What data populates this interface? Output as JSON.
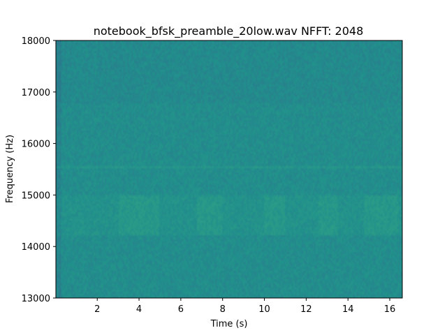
{
  "chart_data": {
    "type": "heatmap",
    "title": "notebook_bfsk_preamble_20low.wav  NFFT: 2048",
    "xlabel": "Time (s)",
    "ylabel": "Frequency (Hz)",
    "xlim": [
      0.02,
      16.6
    ],
    "ylim": [
      13000,
      18000
    ],
    "xticks": [
      2,
      4,
      6,
      8,
      10,
      12,
      14,
      16
    ],
    "xtick_labels": [
      "2",
      "4",
      "6",
      "8",
      "10",
      "12",
      "14",
      "16"
    ],
    "yticks": [
      13000,
      14000,
      15000,
      16000,
      17000,
      18000
    ],
    "ytick_labels": [
      "13000",
      "14000",
      "15000",
      "16000",
      "17000",
      "18000"
    ],
    "colormap": "viridis",
    "colors": {
      "low": "#2f6f8e",
      "mid": "#21918c",
      "high": "#35a683"
    },
    "features": {
      "horizontal_line_hz": 15550,
      "bright_band_hz": [
        14200,
        15000
      ],
      "bright_segments_s": [
        [
          3.0,
          5.0
        ],
        [
          6.8,
          8.0
        ],
        [
          10.0,
          11.0
        ],
        [
          12.6,
          13.5
        ],
        [
          14.8,
          16.4
        ]
      ]
    },
    "grid": false
  }
}
